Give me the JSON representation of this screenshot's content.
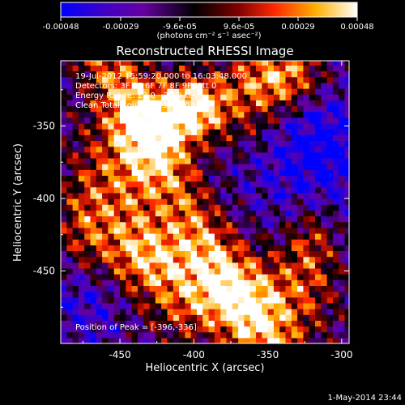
{
  "colorbar": {
    "ticks": [
      "-0.00048",
      "-0.00029",
      "-9.6e-05",
      "9.6e-05",
      "0.00029",
      "0.00048"
    ],
    "unit_label": "(photons cm⁻² s⁻¹ asec⁻²)"
  },
  "chart_data": {
    "type": "heatmap",
    "title": "Reconstructed RHESSI Image",
    "xlabel": "Heliocentric X (arcsec)",
    "ylabel": "Heliocentric Y (arcsec)",
    "xlim": [
      -490,
      -295
    ],
    "ylim": [
      -500,
      -305
    ],
    "x_ticks": [
      "-450",
      "-400",
      "-350",
      "-300"
    ],
    "x_tick_values": [
      -450,
      -400,
      -350,
      -300
    ],
    "y_ticks": [
      "-350",
      "-400",
      "-450"
    ],
    "y_tick_values": [
      -350,
      -400,
      -450
    ],
    "clim": [
      -0.00048,
      0.00048
    ],
    "colormap": [
      "#0000ff",
      "#3c00c8",
      "#6600a0",
      "#000000",
      "#800000",
      "#ff2800",
      "#ffb000",
      "#ffffff"
    ],
    "annotations": [
      "19-Jul-2012 15:59:20.000 to 16:03:48.000",
      "Detectors: 3F 5F 6F 7F 8F 9F, Att 0",
      "Energy Range: 12.0 - 25.0 keV",
      "Clean     Total counts: 3.52E+03"
    ],
    "peak_text": "Position of Peak = [-396,-336]",
    "peak": [
      -396,
      -336
    ]
  },
  "timestamp": "1-May-2014 23:44"
}
